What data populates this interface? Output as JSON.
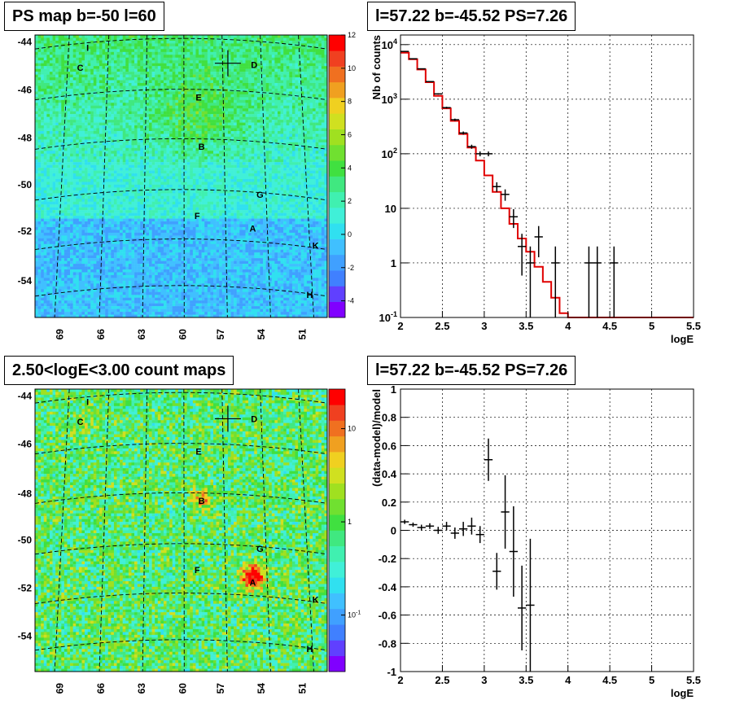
{
  "panels": {
    "map_top_title": "PS map b=-50 l=60",
    "spec_top_title": "l=57.22 b=-45.52 PS=7.26",
    "map_bottom_title": "2.50<logE<3.00 count maps",
    "spec_bottom_title": "l=57.22 b=-45.52 PS=7.26"
  },
  "chart_data": [
    {
      "type": "heatmap",
      "title": "PS map b=-50 l=60",
      "x_ticks": [
        "69",
        "66",
        "63",
        "60",
        "57",
        "54",
        "51"
      ],
      "y_ticks": [
        "-44",
        "-46",
        "-48",
        "-50",
        "-52",
        "-54"
      ],
      "colorbar_ticks": [
        "12",
        "10",
        "8",
        "6",
        "4",
        "2",
        "0",
        "-2",
        "-4"
      ],
      "zlim": [
        -5,
        12
      ],
      "sources": [
        "I",
        "C",
        "D",
        "E",
        "B",
        "G",
        "F",
        "A",
        "K",
        "H"
      ]
    },
    {
      "type": "line",
      "title": "l=57.22 b=-45.52 PS=7.26",
      "xlabel": "logE",
      "ylabel": "Nb of counts",
      "log_y": true,
      "xlim": [
        2,
        5.5
      ],
      "ylim": [
        0.1,
        15000
      ],
      "x_ticks": [
        "2",
        "2.5",
        "3",
        "3.5",
        "4",
        "4.5",
        "5",
        "5.5"
      ],
      "y_ticks": [
        "10^-1",
        "1",
        "10",
        "10^2",
        "10^3",
        "10^4"
      ],
      "grid": true,
      "series": [
        {
          "style": "data points with error bars",
          "x": [
            2.05,
            2.15,
            2.25,
            2.35,
            2.45,
            2.55,
            2.65,
            2.75,
            2.85,
            2.95,
            3.05,
            3.15,
            3.25,
            3.35,
            3.45,
            3.55,
            3.65,
            3.75,
            3.85,
            3.95,
            4.05,
            4.15,
            4.25,
            4.35,
            4.45,
            4.55
          ],
          "y": [
            7500,
            5500,
            3600,
            2100,
            1250,
            700,
            420,
            240,
            135,
            100,
            100,
            25,
            18,
            7,
            2,
            1,
            3,
            0,
            1,
            0,
            0,
            0,
            1,
            1,
            0,
            1
          ]
        },
        {
          "style": "red step histogram (model)",
          "x": [
            2.05,
            2.15,
            2.25,
            2.35,
            2.45,
            2.55,
            2.65,
            2.75,
            2.85,
            2.95,
            3.05,
            3.15,
            3.25,
            3.35,
            3.45,
            3.55,
            3.65,
            3.75,
            3.85,
            3.95,
            4.05,
            4.15,
            4.25,
            4.35,
            4.45,
            4.55,
            4.65,
            4.75,
            4.85,
            4.95,
            5.05,
            5.15,
            5.25,
            5.35,
            5.45
          ],
          "y": [
            7100,
            5400,
            3500,
            2050,
            1150,
            680,
            400,
            230,
            130,
            75,
            40,
            20,
            10,
            5.2,
            2.8,
            1.6,
            0.85,
            0.45,
            0.23,
            0.12,
            0.1,
            0.1,
            0.1,
            0.1,
            0.1,
            0.1,
            0.1,
            0.1,
            0.1,
            0.1,
            0.1,
            0.1,
            0.1,
            0.1,
            0.1
          ]
        }
      ]
    },
    {
      "type": "heatmap",
      "title": "2.50<logE<3.00 count maps",
      "x_ticks": [
        "69",
        "66",
        "63",
        "60",
        "57",
        "54",
        "51"
      ],
      "y_ticks": [
        "-44",
        "-46",
        "-48",
        "-50",
        "-52",
        "-54"
      ],
      "colorbar_ticks": [
        "10",
        "1",
        "10^-1"
      ],
      "log_z": true,
      "sources": [
        "I",
        "C",
        "D",
        "E",
        "B",
        "G",
        "F",
        "A",
        "K",
        "H"
      ]
    },
    {
      "type": "scatter",
      "title": "l=57.22 b=-45.52 PS=7.26",
      "xlabel": "logE",
      "ylabel": "(data-model)/model",
      "xlim": [
        2,
        5.5
      ],
      "ylim": [
        -1,
        1
      ],
      "x_ticks": [
        "2",
        "2.5",
        "3",
        "3.5",
        "4",
        "4.5",
        "5",
        "5.5"
      ],
      "y_ticks": [
        "1",
        "0.8",
        "0.6",
        "0.4",
        "0.2",
        "0",
        "-0.2",
        "-0.4",
        "-0.6",
        "-0.8",
        "-1"
      ],
      "grid": true,
      "x": [
        2.05,
        2.15,
        2.25,
        2.35,
        2.45,
        2.55,
        2.65,
        2.75,
        2.85,
        2.95,
        3.05,
        3.15,
        3.25,
        3.35,
        3.45,
        3.55
      ],
      "y": [
        0.06,
        0.04,
        0.02,
        0.03,
        0.0,
        0.03,
        -0.02,
        0.01,
        0.03,
        -0.03,
        0.5,
        -0.29,
        0.13,
        -0.15,
        -0.55,
        -0.53
      ],
      "err": [
        0.015,
        0.015,
        0.02,
        0.02,
        0.025,
        0.03,
        0.04,
        0.05,
        0.06,
        0.06,
        0.15,
        0.13,
        0.26,
        0.32,
        0.3,
        0.47
      ]
    }
  ]
}
